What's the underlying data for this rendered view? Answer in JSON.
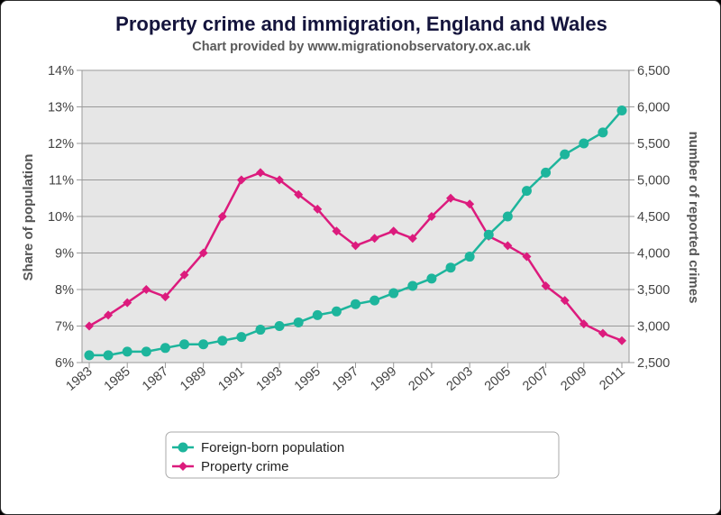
{
  "chart_data": {
    "type": "line",
    "title": "Property crime and immigration, England and Wales",
    "subtitle": "Chart provided by www.migrationobservatory.ox.ac.uk",
    "y_left_label": "Share of population",
    "y_right_label": "number of reported crimes",
    "y_left_range": [
      6,
      14
    ],
    "y_right_range": [
      2500,
      6500
    ],
    "y_left_ticks": [
      "6%",
      "7%",
      "8%",
      "9%",
      "10%",
      "11%",
      "12%",
      "13%",
      "14%"
    ],
    "y_right_ticks": [
      "2,500",
      "3,000",
      "3,500",
      "4,000",
      "4,500",
      "5,000",
      "5,500",
      "6,000",
      "6,500"
    ],
    "x_ticks": [
      "1983",
      "1985",
      "1987",
      "1989",
      "1991",
      "1993",
      "1995",
      "1997",
      "1999",
      "2001",
      "2003",
      "2005",
      "2007",
      "2009",
      "2011"
    ],
    "x": [
      1983,
      1984,
      1985,
      1986,
      1987,
      1988,
      1989,
      1990,
      1991,
      1992,
      1993,
      1994,
      1995,
      1996,
      1997,
      1998,
      1999,
      2000,
      2001,
      2002,
      2003,
      2004,
      2005,
      2006,
      2007,
      2008,
      2009,
      2010,
      2011
    ],
    "grid": true,
    "legend_position": "bottom",
    "series": [
      {
        "name": "Foreign-born population",
        "axis": "left",
        "color": "#1db59c",
        "marker": "circle",
        "values": [
          6.2,
          6.2,
          6.3,
          6.3,
          6.4,
          6.5,
          6.5,
          6.6,
          6.7,
          6.9,
          7.0,
          7.1,
          7.3,
          7.4,
          7.6,
          7.7,
          7.9,
          8.1,
          8.3,
          8.6,
          8.9,
          9.5,
          10.0,
          10.7,
          11.2,
          11.7,
          12.0,
          12.3,
          12.9
        ]
      },
      {
        "name": "Property crime",
        "axis": "right",
        "color": "#dc1b7d",
        "marker": "diamond",
        "values": [
          3000,
          3150,
          3320,
          3500,
          3400,
          3700,
          4000,
          4500,
          5000,
          5100,
          5000,
          4800,
          4600,
          4300,
          4100,
          4200,
          4300,
          4200,
          4500,
          4750,
          4670,
          4230,
          4100,
          3950,
          3550,
          3350,
          3030,
          2900,
          2800
        ]
      }
    ]
  }
}
